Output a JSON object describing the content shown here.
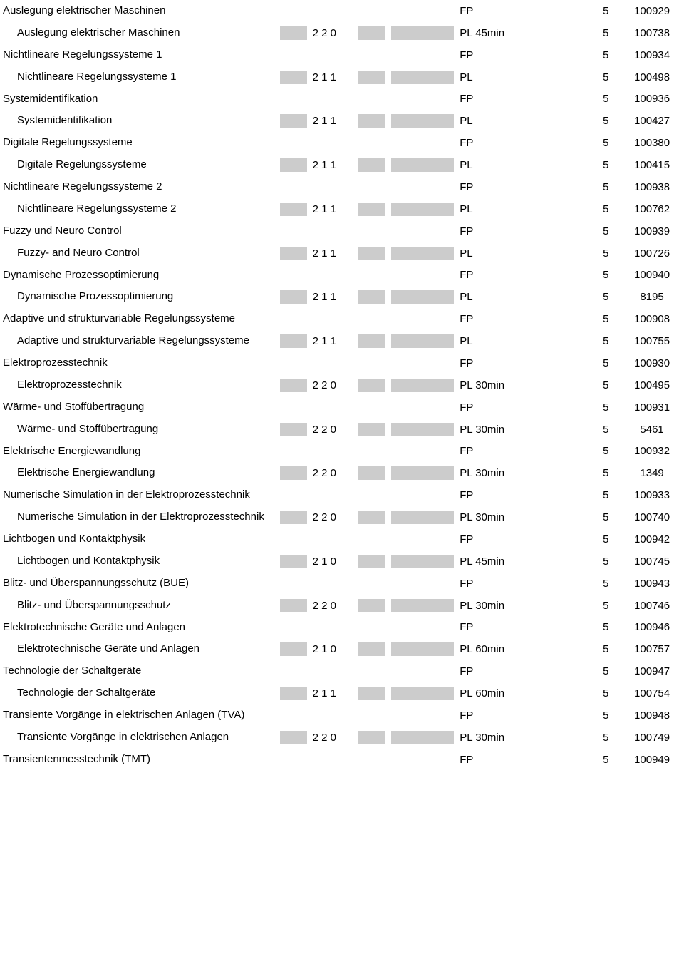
{
  "colors": {
    "block": "#cccccc",
    "bg": "#ffffff",
    "text": "#000000"
  },
  "font": {
    "family": "Arial",
    "size_pt": 11
  },
  "rows": [
    {
      "kind": "h",
      "name": "Auslegung elektrischer Maschinen",
      "type": "FP",
      "credit": "5",
      "id": "100929"
    },
    {
      "kind": "s",
      "name": "Auslegung elektrischer Maschinen",
      "sws": "2 2 0",
      "type": "PL 45min",
      "credit": "5",
      "id": "100738"
    },
    {
      "kind": "h",
      "name": "Nichtlineare Regelungssysteme 1",
      "type": "FP",
      "credit": "5",
      "id": "100934"
    },
    {
      "kind": "s",
      "name": "Nichtlineare Regelungssysteme 1",
      "sws": "2 1 1",
      "type": "PL",
      "credit": "5",
      "id": "100498"
    },
    {
      "kind": "h",
      "name": "Systemidentifikation",
      "type": "FP",
      "credit": "5",
      "id": "100936"
    },
    {
      "kind": "s",
      "name": "Systemidentifikation",
      "sws": "2 1 1",
      "type": "PL",
      "credit": "5",
      "id": "100427"
    },
    {
      "kind": "h",
      "name": "Digitale Regelungssysteme",
      "type": "FP",
      "credit": "5",
      "id": "100380"
    },
    {
      "kind": "s",
      "name": "Digitale Regelungssysteme",
      "sws": "2 1 1",
      "type": "PL",
      "credit": "5",
      "id": "100415"
    },
    {
      "kind": "h",
      "name": "Nichtlineare Regelungssysteme 2",
      "type": "FP",
      "credit": "5",
      "id": "100938"
    },
    {
      "kind": "s",
      "name": "Nichtlineare Regelungssysteme 2",
      "sws": "2 1 1",
      "type": "PL",
      "credit": "5",
      "id": "100762"
    },
    {
      "kind": "h",
      "name": "Fuzzy und Neuro Control",
      "type": "FP",
      "credit": "5",
      "id": "100939"
    },
    {
      "kind": "s",
      "name": "Fuzzy- and Neuro Control",
      "sws": "2 1 1",
      "type": "PL",
      "credit": "5",
      "id": "100726"
    },
    {
      "kind": "h",
      "name": "Dynamische Prozessoptimierung",
      "type": "FP",
      "credit": "5",
      "id": "100940"
    },
    {
      "kind": "s",
      "name": "Dynamische Prozessoptimierung",
      "sws": "2 1 1",
      "type": "PL",
      "credit": "5",
      "id": "8195"
    },
    {
      "kind": "h",
      "name": "Adaptive und strukturvariable Regelungssysteme",
      "type": "FP",
      "credit": "5",
      "id": "100908"
    },
    {
      "kind": "s",
      "name": "Adaptive und strukturvariable Regelungssysteme",
      "sws": "2 1 1",
      "type": "PL",
      "credit": "5",
      "id": "100755"
    },
    {
      "kind": "h",
      "name": "Elektroprozesstechnik",
      "type": "FP",
      "credit": "5",
      "id": "100930"
    },
    {
      "kind": "s",
      "name": "Elektroprozesstechnik",
      "sws": "2 2 0",
      "type": "PL 30min",
      "credit": "5",
      "id": "100495"
    },
    {
      "kind": "h",
      "name": "Wärme- und Stoffübertragung",
      "type": "FP",
      "credit": "5",
      "id": "100931"
    },
    {
      "kind": "s",
      "name": "Wärme- und Stoffübertragung",
      "sws": "2 2 0",
      "type": "PL 30min",
      "credit": "5",
      "id": "5461"
    },
    {
      "kind": "h",
      "name": "Elektrische Energiewandlung",
      "type": "FP",
      "credit": "5",
      "id": "100932"
    },
    {
      "kind": "s",
      "name": "Elektrische Energiewandlung",
      "sws": "2 2 0",
      "type": "PL 30min",
      "credit": "5",
      "id": "1349"
    },
    {
      "kind": "h",
      "name": "Numerische Simulation in der Elektroprozesstechnik",
      "type": "FP",
      "credit": "5",
      "id": "100933"
    },
    {
      "kind": "s",
      "name": "Numerische Simulation in der Elektroprozesstechnik",
      "sws": "2 2 0",
      "type": "PL 30min",
      "credit": "5",
      "id": "100740"
    },
    {
      "kind": "h",
      "name": "Lichtbogen und Kontaktphysik",
      "type": "FP",
      "credit": "5",
      "id": "100942"
    },
    {
      "kind": "s",
      "name": "Lichtbogen und Kontaktphysik",
      "sws": "2 1 0",
      "type": "PL 45min",
      "credit": "5",
      "id": "100745"
    },
    {
      "kind": "h",
      "name": "Blitz- und Überspannungsschutz (BUE)",
      "type": "FP",
      "credit": "5",
      "id": "100943"
    },
    {
      "kind": "s",
      "name": "Blitz- und Überspannungsschutz",
      "sws": "2 2 0",
      "type": "PL 30min",
      "credit": "5",
      "id": "100746"
    },
    {
      "kind": "h",
      "name": "Elektrotechnische Geräte und Anlagen",
      "type": "FP",
      "credit": "5",
      "id": "100946"
    },
    {
      "kind": "s",
      "name": "Elektrotechnische Geräte und Anlagen",
      "sws": "2 1 0",
      "type": "PL 60min",
      "credit": "5",
      "id": "100757"
    },
    {
      "kind": "h",
      "name": "Technologie der Schaltgeräte",
      "type": "FP",
      "credit": "5",
      "id": "100947"
    },
    {
      "kind": "s",
      "name": "Technologie der Schaltgeräte",
      "sws": "2 1 1",
      "type": "PL 60min",
      "credit": "5",
      "id": "100754"
    },
    {
      "kind": "h",
      "name": "Transiente Vorgänge in elektrischen Anlagen (TVA)",
      "type": "FP",
      "credit": "5",
      "id": "100948"
    },
    {
      "kind": "s",
      "name": "Transiente Vorgänge in elektrischen Anlagen",
      "sws": "2 2 0",
      "type": "PL 30min",
      "credit": "5",
      "id": "100749"
    },
    {
      "kind": "h",
      "name": "Transientenmesstechnik (TMT)",
      "type": "FP",
      "credit": "5",
      "id": "100949"
    }
  ]
}
